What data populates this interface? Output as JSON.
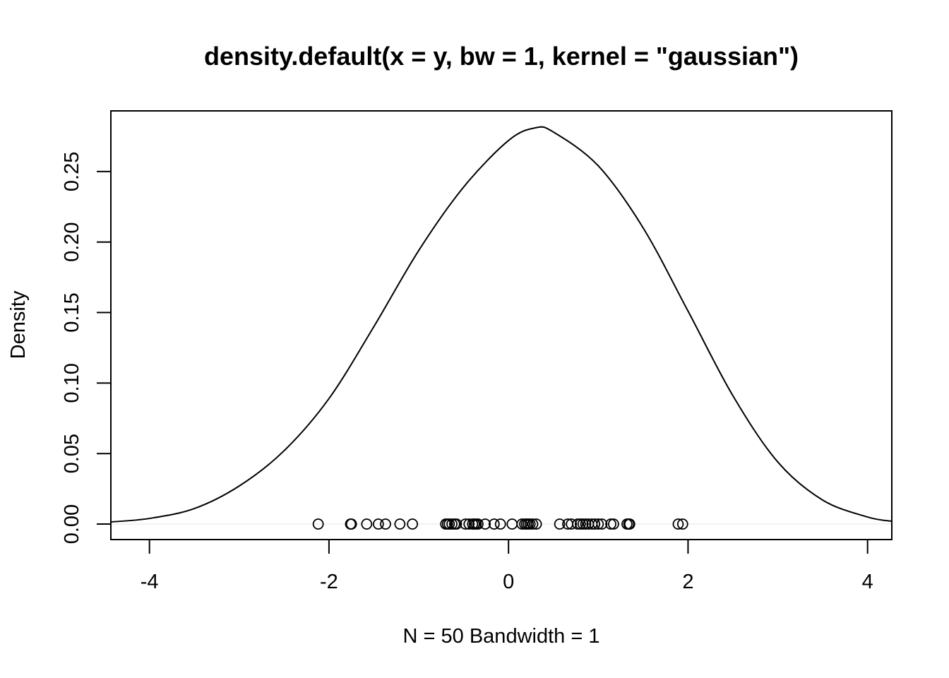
{
  "chart_data": {
    "type": "line",
    "title": "density.default(x = y, bw = 1, kernel = \"gaussian\")",
    "xlabel": "N = 50   Bandwidth = 1",
    "ylabel": "Density",
    "xlim": [
      -4.43,
      4.27
    ],
    "ylim": [
      -0.011,
      0.293
    ],
    "x_ticks": [
      -4,
      -2,
      0,
      2,
      4
    ],
    "x_tick_labels": [
      "-4",
      "-2",
      "0",
      "2",
      "4"
    ],
    "y_ticks": [
      0,
      0.05,
      0.1,
      0.15,
      0.2,
      0.25
    ],
    "y_tick_labels": [
      "0.00",
      "0.05",
      "0.10",
      "0.15",
      "0.20",
      "0.25"
    ],
    "grid": false,
    "zero_line": true,
    "series": [
      {
        "kind": "line",
        "x": [
          -4.43,
          -4.0,
          -3.5,
          -3.0,
          -2.5,
          -2.0,
          -1.5,
          -1.0,
          -0.5,
          0.0,
          0.3,
          0.5,
          1.0,
          1.5,
          2.0,
          2.5,
          3.0,
          3.5,
          4.0,
          4.27
        ],
        "y": [
          0.0015,
          0.004,
          0.011,
          0.027,
          0.052,
          0.089,
          0.14,
          0.194,
          0.239,
          0.272,
          0.281,
          0.278,
          0.254,
          0.21,
          0.151,
          0.091,
          0.044,
          0.017,
          0.005,
          0.002
        ]
      },
      {
        "kind": "rug-points",
        "x": [
          -2.12,
          -1.76,
          -1.75,
          -1.58,
          -1.45,
          -1.37,
          -1.21,
          -1.07,
          -0.7,
          -0.68,
          -0.66,
          -0.63,
          -0.6,
          -0.58,
          -0.48,
          -0.44,
          -0.4,
          -0.38,
          -0.36,
          -0.34,
          -0.26,
          -0.16,
          -0.09,
          0.04,
          0.15,
          0.18,
          0.2,
          0.22,
          0.24,
          0.27,
          0.31,
          0.57,
          0.66,
          0.7,
          0.77,
          0.8,
          0.83,
          0.86,
          0.89,
          0.93,
          0.96,
          1.0,
          1.04,
          1.14,
          1.17,
          1.32,
          1.34,
          1.35,
          1.89,
          1.94
        ],
        "y_value": 0
      }
    ]
  }
}
